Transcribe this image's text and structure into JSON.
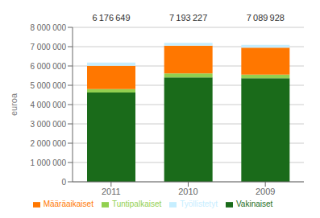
{
  "chart_data": {
    "type": "bar",
    "stacked": true,
    "categories": [
      "2011",
      "2010",
      "2009"
    ],
    "series": [
      {
        "name": "Vakinaiset",
        "color": "#1a6b1a",
        "values": [
          4620000,
          5410000,
          5360000
        ]
      },
      {
        "name": "Tuntipalkaiset",
        "color": "#92d050",
        "values": [
          180000,
          200000,
          190000
        ]
      },
      {
        "name": "Määräaikaiset",
        "color": "#ff7700",
        "values": [
          1210000,
          1440000,
          1400000
        ]
      },
      {
        "name": "Työllistetyt",
        "color": "#c6eeff",
        "values": [
          166649,
          143227,
          139928
        ]
      }
    ],
    "totals": [
      6176649,
      7193227,
      7089928
    ],
    "total_labels": [
      "6 176 649",
      "7 193 227",
      "7 089 928"
    ],
    "ylabel": "euroa",
    "ylim": [
      0,
      8000000
    ],
    "yticks": [
      0,
      {
        "value": 1000000,
        "label": "1 000 000"
      },
      {
        "value": 2000000,
        "label": "2 000 000"
      },
      {
        "value": 3000000,
        "label": "3 000 000"
      },
      {
        "value": 4000000,
        "label": "4 000 000"
      },
      {
        "value": 5000000,
        "label": "5 000 000"
      },
      {
        "value": 6000000,
        "label": "6 000 000"
      },
      {
        "value": 7000000,
        "label": "7 000 000"
      },
      {
        "value": 8000000,
        "label": "8 000 000"
      }
    ],
    "grid": "y",
    "legend": "bottom"
  }
}
